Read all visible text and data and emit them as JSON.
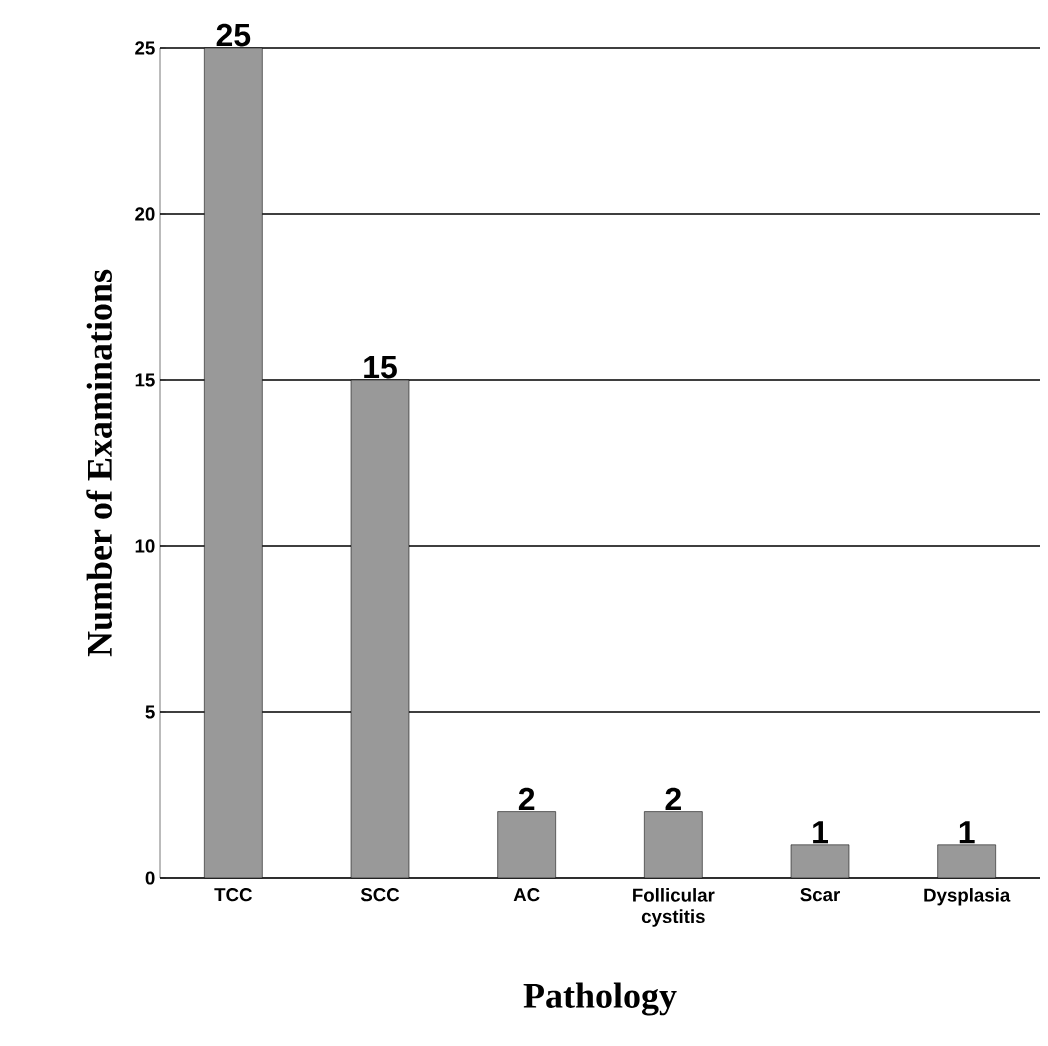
{
  "chart_data": {
    "type": "bar",
    "xlabel": "Pathology",
    "ylabel": "Number of Examinations",
    "categories": [
      "TCC",
      "SCC",
      "AC",
      "Follicular cystitis",
      "Scar",
      "Dysplasia"
    ],
    "values": [
      25,
      15,
      2,
      2,
      1,
      1
    ],
    "color": "#999999",
    "ylim": [
      0,
      25
    ],
    "yticks": [
      0,
      5,
      10,
      15,
      20,
      25
    ],
    "grid": "y",
    "data_labels": true
  }
}
